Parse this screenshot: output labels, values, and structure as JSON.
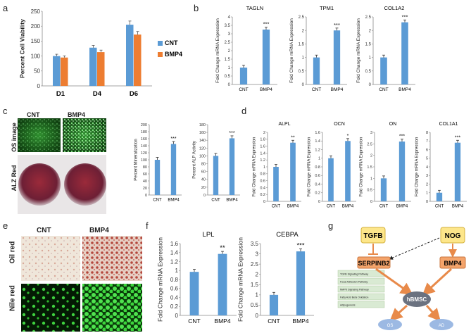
{
  "panel_letters": {
    "a": "a",
    "b": "b",
    "c": "c",
    "d": "d",
    "e": "e",
    "f": "f",
    "g": "g"
  },
  "colors": {
    "cnt": "#5b9bd5",
    "bmp4": "#ed7d31",
    "bar": "#5b9bd5",
    "axis": "#888888",
    "bracket_arrow": "#f4a261",
    "node_fill": "#fde68a",
    "node_bmp4": "#f4a46b",
    "gray_node": "#6b7280",
    "ellipse": "#9cb9e3",
    "pathway_fill": "#d9ead3"
  },
  "panel_c": {
    "col_cnt": "CNT",
    "col_bmp4": "BMP4",
    "row_os": "OS image",
    "row_alz": "ALZ Red"
  },
  "panel_e": {
    "col_cnt": "CNT",
    "col_bmp4": "BMP4",
    "row_oil": "Oil red",
    "row_nile": "Nile red"
  },
  "panel_g": {
    "tgfb": "TGFB",
    "nog": "NOG",
    "serpinb2": "SERPINB2",
    "bmp4": "BMP4",
    "hbmsc": "hBMSC",
    "os": "OS",
    "ad": "AD",
    "pathways": [
      "TGFB Signaling Pathway",
      "Focal Adhesion Pathway",
      "MAPK Signaling Pathway",
      "Fatty Acid Beta Oxidation",
      "Adipogenesis"
    ]
  },
  "chart_data": [
    {
      "id": "a",
      "type": "bar",
      "title": "",
      "ylabel": "Percent Cell Viability",
      "ylim": [
        0,
        250
      ],
      "yticks": [
        0,
        50,
        100,
        150,
        200,
        250
      ],
      "categories": [
        "D1",
        "D4",
        "D6"
      ],
      "series": [
        {
          "name": "CNT",
          "values": [
            100,
            128,
            205
          ]
        },
        {
          "name": "BMP4",
          "values": [
            95,
            113,
            172
          ]
        }
      ],
      "legend": "right"
    },
    {
      "id": "b1",
      "type": "bar",
      "title": "TAGLN",
      "ylabel": "Fold Change mRNA Expression",
      "ylim": [
        0,
        4
      ],
      "yticks": [
        0,
        0.5,
        1,
        1.5,
        2,
        2.5,
        3,
        3.5,
        4
      ],
      "categories": [
        "CNT",
        "BMP4"
      ],
      "values": [
        1.0,
        3.25
      ],
      "annotations": [
        "",
        "***"
      ]
    },
    {
      "id": "b2",
      "type": "bar",
      "title": "TPM1",
      "ylabel": "Fold Change mRNA Expression",
      "ylim": [
        0,
        2.5
      ],
      "yticks": [
        0,
        0.5,
        1,
        1.5,
        2,
        2.5
      ],
      "categories": [
        "CNT",
        "BMP4"
      ],
      "values": [
        1.0,
        2.0
      ],
      "annotations": [
        "",
        "***"
      ]
    },
    {
      "id": "b3",
      "type": "bar",
      "title": "COL1A2",
      "ylabel": "Fold Change mRNA Expression",
      "ylim": [
        0,
        2.5
      ],
      "yticks": [
        0,
        0.5,
        1,
        1.5,
        2,
        2.5
      ],
      "categories": [
        "CNT",
        "BMP4"
      ],
      "values": [
        1.0,
        2.3
      ],
      "annotations": [
        "",
        "***"
      ]
    },
    {
      "id": "c1",
      "type": "bar",
      "title": "",
      "ylabel": "Percent Mineralization",
      "ylim": [
        0,
        200
      ],
      "yticks": [
        0,
        20,
        40,
        60,
        80,
        100,
        120,
        140,
        160,
        180,
        200
      ],
      "categories": [
        "CNT",
        "BMP4"
      ],
      "values": [
        100,
        145
      ],
      "annotations": [
        "",
        "***"
      ]
    },
    {
      "id": "c2",
      "type": "bar",
      "title": "",
      "ylabel": "Percent ALP Activity",
      "ylim": [
        0,
        180
      ],
      "yticks": [
        0,
        20,
        40,
        60,
        80,
        100,
        120,
        140,
        160,
        180
      ],
      "categories": [
        "CNT",
        "BMP4"
      ],
      "values": [
        100,
        145
      ],
      "annotations": [
        "",
        "***"
      ]
    },
    {
      "id": "d1",
      "type": "bar",
      "title": "ALPL",
      "ylabel": "Fold Change mRNA Expression",
      "ylim": [
        0,
        2
      ],
      "yticks": [
        0,
        0.2,
        0.4,
        0.6,
        0.8,
        1,
        1.2,
        1.4,
        1.6,
        1.8,
        2
      ],
      "categories": [
        "CNT",
        "BMP4"
      ],
      "values": [
        1.0,
        1.7
      ],
      "annotations": [
        "",
        "**"
      ]
    },
    {
      "id": "d2",
      "type": "bar",
      "title": "OCN",
      "ylabel": "Fold Change mRNA Expression",
      "ylim": [
        0,
        1.6
      ],
      "yticks": [
        0,
        0.2,
        0.4,
        0.6,
        0.8,
        1,
        1.2,
        1.4,
        1.6
      ],
      "categories": [
        "CNT",
        "BMP4"
      ],
      "values": [
        1.0,
        1.4
      ],
      "annotations": [
        "",
        "*"
      ]
    },
    {
      "id": "d3",
      "type": "bar",
      "title": "ON",
      "ylabel": "Fold Change mRNA Expression",
      "ylim": [
        0,
        3
      ],
      "yticks": [
        0,
        0.5,
        1,
        1.5,
        2,
        2.5,
        3
      ],
      "categories": [
        "CNT",
        "BMP4"
      ],
      "values": [
        1.0,
        2.6
      ],
      "annotations": [
        "",
        "***"
      ]
    },
    {
      "id": "d4",
      "type": "bar",
      "title": "COL1A1",
      "ylabel": "Fold Change mRNA Expression",
      "ylim": [
        0,
        8
      ],
      "yticks": [
        0,
        1,
        2,
        3,
        4,
        5,
        6,
        7,
        8
      ],
      "categories": [
        "CNT",
        "BMP4"
      ],
      "values": [
        1.0,
        6.8
      ],
      "annotations": [
        "",
        "***"
      ]
    },
    {
      "id": "f1",
      "type": "bar",
      "title": "LPL",
      "ylabel": "Fold Change mRNA Expression",
      "ylim": [
        0,
        1.6
      ],
      "yticks": [
        0,
        0.2,
        0.4,
        0.6,
        0.8,
        1,
        1.2,
        1.4,
        1.6
      ],
      "categories": [
        "CNT",
        "BMP4"
      ],
      "values": [
        0.97,
        1.37
      ],
      "annotations": [
        "",
        "**"
      ]
    },
    {
      "id": "f2",
      "type": "bar",
      "title": "CEBPA",
      "ylabel": "Fold Change mRNA Expression",
      "ylim": [
        0,
        3.5
      ],
      "yticks": [
        0,
        0.5,
        1,
        1.5,
        2,
        2.5,
        3,
        3.5
      ],
      "categories": [
        "CNT",
        "BMP4"
      ],
      "values": [
        1.0,
        3.12
      ],
      "annotations": [
        "",
        "***"
      ]
    }
  ]
}
